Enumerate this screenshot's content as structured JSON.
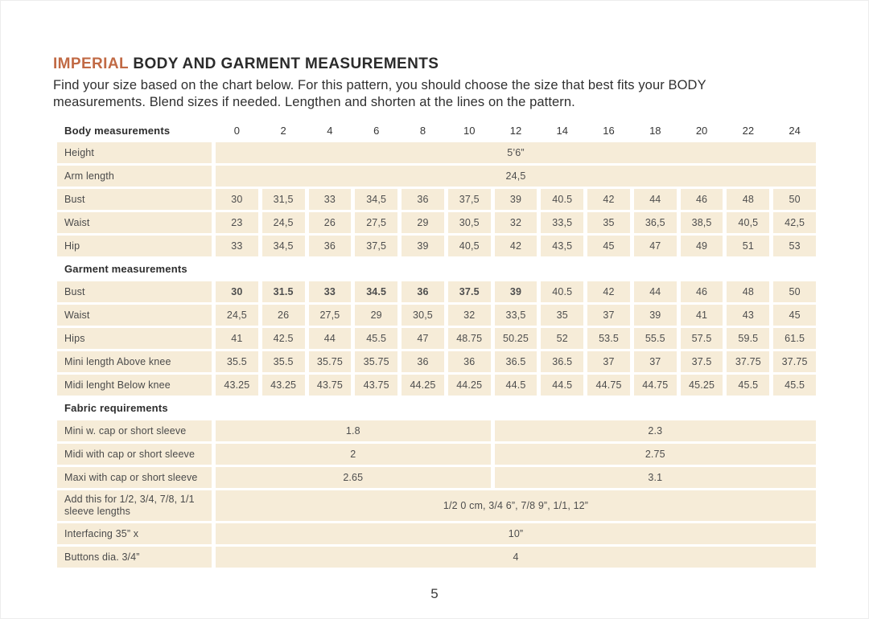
{
  "page": {
    "title_accent": "IMPERIAL",
    "title_rest": " BODY AND GARMENT MEASUREMENTS",
    "intro_line1": "Find your size based on the chart below. For this pattern, you should choose the size that best fits your BODY",
    "intro_line2": "measurements. Blend sizes if needed. Lengthen and shorten at the lines on the pattern.",
    "page_number": "5"
  },
  "colors": {
    "accent": "#c16a45",
    "cell_background": "#f6ecd8",
    "text": "#2d2d2d"
  },
  "table": {
    "header_label": "Body measurements",
    "sizes": [
      "0",
      "2",
      "4",
      "6",
      "8",
      "10",
      "12",
      "14",
      "16",
      "18",
      "20",
      "22",
      "24"
    ],
    "sections": [
      {
        "rows": [
          {
            "label": "Height",
            "cells": [
              {
                "t": "5’6”",
                "s": 13
              }
            ]
          },
          {
            "label": "Arm length",
            "cells": [
              {
                "t": "24,5",
                "s": 13
              }
            ]
          },
          {
            "label": "Bust",
            "cells": [
              {
                "t": "30"
              },
              {
                "t": "31,5"
              },
              {
                "t": "33"
              },
              {
                "t": "34,5"
              },
              {
                "t": "36"
              },
              {
                "t": "37,5"
              },
              {
                "t": "39"
              },
              {
                "t": "40.5"
              },
              {
                "t": "42"
              },
              {
                "t": "44"
              },
              {
                "t": "46"
              },
              {
                "t": "48"
              },
              {
                "t": "50"
              }
            ]
          },
          {
            "label": "Waist",
            "cells": [
              {
                "t": "23"
              },
              {
                "t": "24,5"
              },
              {
                "t": "26"
              },
              {
                "t": "27,5"
              },
              {
                "t": "29"
              },
              {
                "t": "30,5"
              },
              {
                "t": "32"
              },
              {
                "t": "33,5"
              },
              {
                "t": "35"
              },
              {
                "t": "36,5"
              },
              {
                "t": "38,5"
              },
              {
                "t": "40,5"
              },
              {
                "t": "42,5"
              }
            ]
          },
          {
            "label": "Hip",
            "cells": [
              {
                "t": "33"
              },
              {
                "t": "34,5"
              },
              {
                "t": "36"
              },
              {
                "t": "37,5"
              },
              {
                "t": "39"
              },
              {
                "t": "40,5"
              },
              {
                "t": "42"
              },
              {
                "t": "43,5"
              },
              {
                "t": "45"
              },
              {
                "t": "47"
              },
              {
                "t": "49"
              },
              {
                "t": "51"
              },
              {
                "t": "53"
              }
            ]
          }
        ]
      },
      {
        "title": "Garment measurements",
        "rows": [
          {
            "label": "Bust",
            "cells": [
              {
                "t": "30",
                "b": true
              },
              {
                "t": "31.5",
                "b": true
              },
              {
                "t": "33",
                "b": true
              },
              {
                "t": "34.5",
                "b": true
              },
              {
                "t": "36",
                "b": true
              },
              {
                "t": "37.5",
                "b": true
              },
              {
                "t": "39",
                "b": true
              },
              {
                "t": "40.5"
              },
              {
                "t": "42"
              },
              {
                "t": "44"
              },
              {
                "t": "46"
              },
              {
                "t": "48"
              },
              {
                "t": "50"
              }
            ]
          },
          {
            "label": "Waist",
            "cells": [
              {
                "t": "24,5"
              },
              {
                "t": "26"
              },
              {
                "t": "27,5"
              },
              {
                "t": "29"
              },
              {
                "t": "30,5"
              },
              {
                "t": "32"
              },
              {
                "t": "33,5"
              },
              {
                "t": "35"
              },
              {
                "t": "37"
              },
              {
                "t": "39"
              },
              {
                "t": "41"
              },
              {
                "t": "43"
              },
              {
                "t": "45"
              }
            ]
          },
          {
            "label": "Hips",
            "cells": [
              {
                "t": "41"
              },
              {
                "t": "42.5"
              },
              {
                "t": "44"
              },
              {
                "t": "45.5"
              },
              {
                "t": "47"
              },
              {
                "t": "48.75"
              },
              {
                "t": "50.25"
              },
              {
                "t": "52"
              },
              {
                "t": "53.5"
              },
              {
                "t": "55.5"
              },
              {
                "t": "57.5"
              },
              {
                "t": "59.5"
              },
              {
                "t": "61.5"
              }
            ]
          },
          {
            "label": "Mini length Above knee",
            "cells": [
              {
                "t": "35.5"
              },
              {
                "t": "35.5"
              },
              {
                "t": "35.75"
              },
              {
                "t": "35.75"
              },
              {
                "t": "36"
              },
              {
                "t": "36"
              },
              {
                "t": "36.5"
              },
              {
                "t": "36.5"
              },
              {
                "t": "37"
              },
              {
                "t": "37"
              },
              {
                "t": "37.5"
              },
              {
                "t": "37.75"
              },
              {
                "t": "37.75"
              }
            ]
          },
          {
            "label": "Midi lenght Below knee",
            "cells": [
              {
                "t": "43.25"
              },
              {
                "t": "43.25"
              },
              {
                "t": "43.75"
              },
              {
                "t": "43.75"
              },
              {
                "t": "44.25"
              },
              {
                "t": "44.25"
              },
              {
                "t": "44.5"
              },
              {
                "t": "44.5"
              },
              {
                "t": "44.75"
              },
              {
                "t": "44.75"
              },
              {
                "t": "45.25"
              },
              {
                "t": "45.5"
              },
              {
                "t": "45.5"
              }
            ]
          }
        ]
      },
      {
        "title": "Fabric requirements",
        "rows": [
          {
            "label": "Mini w. cap or short sleeve",
            "cells": [
              {
                "t": "1.8",
                "s": 6
              },
              {
                "t": "2.3",
                "s": 7
              }
            ]
          },
          {
            "label": "Midi with cap or short sleeve",
            "cells": [
              {
                "t": "2",
                "s": 6
              },
              {
                "t": "2.75",
                "s": 7
              }
            ]
          },
          {
            "label": "Maxi with cap or short sleeve",
            "cells": [
              {
                "t": "2.65",
                "s": 6
              },
              {
                "t": "3.1",
                "s": 7
              }
            ]
          },
          {
            "label": "Add this for 1/2, 3/4, 7/8, 1/1 sleeve lengths",
            "cells": [
              {
                "t": "1/2 0 cm, 3/4 6”, 7/8 9”, 1/1, 12”",
                "s": 13
              }
            ]
          },
          {
            "label": "Interfacing 35” x",
            "cells": [
              {
                "t": "10”",
                "s": 13
              }
            ]
          },
          {
            "label": "Buttons dia. 3/4”",
            "cells": [
              {
                "t": "4",
                "s": 13
              }
            ]
          }
        ]
      }
    ]
  }
}
